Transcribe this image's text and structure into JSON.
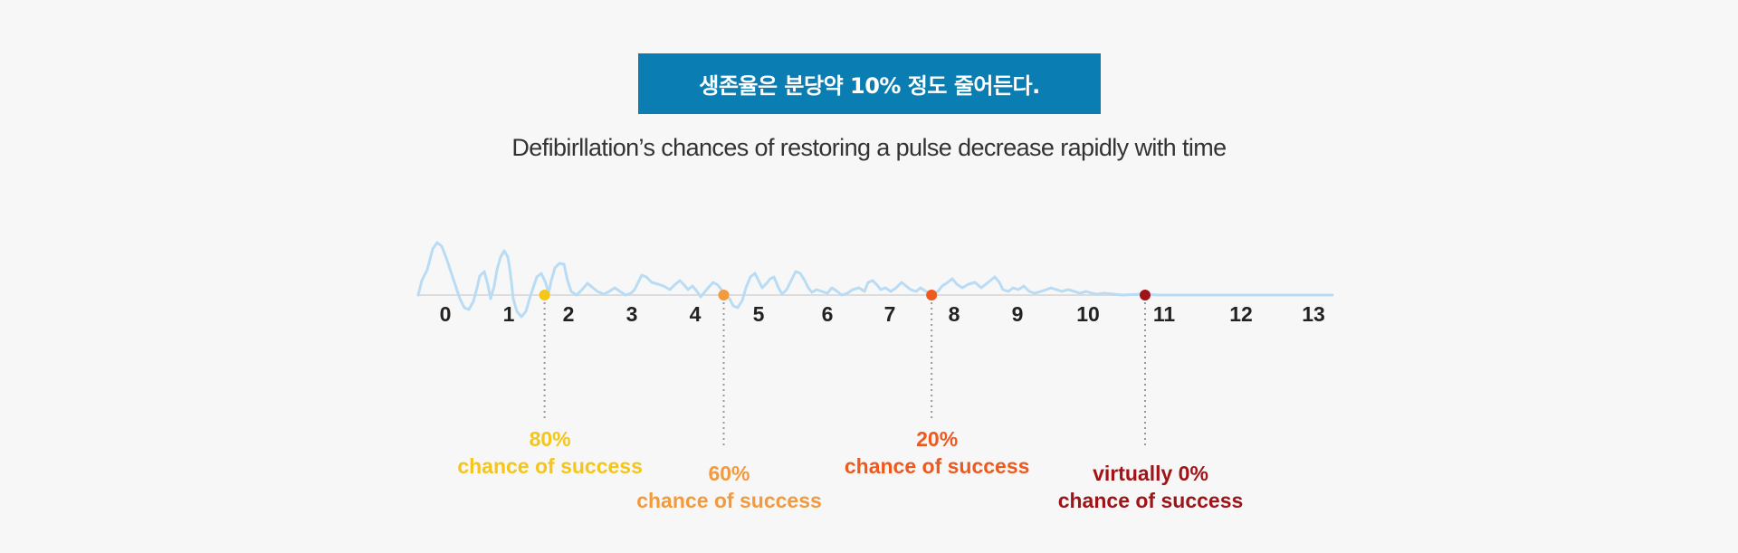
{
  "title": "생존율은 분당약  10% 정도 줄어든다.",
  "subtitle": "Defibirllation’s chances of restoring a pulse decrease rapidly with time",
  "colors": {
    "banner": "#0a7eb3",
    "wave": "#b9dcf4",
    "axis": "#dddddd",
    "guide": "#999999"
  },
  "chart_data": {
    "type": "timeline",
    "ticks": [
      "0",
      "1",
      "2",
      "3",
      "4",
      "5",
      "6",
      "7",
      "8",
      "9",
      "10",
      "11",
      "12",
      "13"
    ],
    "milestones": [
      {
        "x": 1.6,
        "percent": "80%",
        "label": "chance of success",
        "color": "#f5c518",
        "row": "upper"
      },
      {
        "x": 4.45,
        "percent": "60%",
        "label": "chance of success",
        "color": "#f39a3e",
        "row": "lower"
      },
      {
        "x": 7.65,
        "percent": "20%",
        "label": "chance of success",
        "color": "#ee5a1e",
        "row": "upper"
      },
      {
        "x": 10.75,
        "percent": "virtually 0%",
        "label": "chance of success",
        "color": "#a01418",
        "row": "lower"
      }
    ]
  }
}
